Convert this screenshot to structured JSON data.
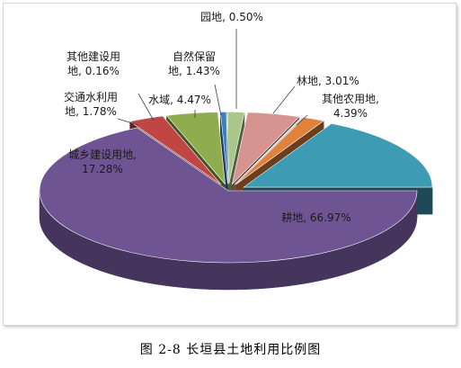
{
  "caption": "图 2-8 长垣县土地利用比例图",
  "chart_data": {
    "type": "pie",
    "title": "",
    "categories": [
      "耕地",
      "林地",
      "其他农用地",
      "园地",
      "自然保留地",
      "水域",
      "其他建设用地",
      "交通水利用地",
      "城乡建设用地"
    ],
    "values": [
      66.97,
      3.01,
      4.39,
      0.5,
      1.43,
      4.47,
      0.16,
      1.78,
      17.28
    ],
    "label_lines": [
      [
        "耕地, 66.97%"
      ],
      [
        "林地, 3.01%"
      ],
      [
        "其他农用地,",
        "4.39%"
      ],
      [
        "园地, 0.50%"
      ],
      [
        "自然保留",
        "地, 1.43%"
      ],
      [
        "水域, 4.47%"
      ],
      [
        "其他建设用",
        "地, 0.16%"
      ],
      [
        "交通水利用",
        "地, 1.78%"
      ],
      [
        "城乡建设用地,",
        "17.28%"
      ]
    ],
    "colors": [
      "#6f5494",
      "#bf4642",
      "#8fac4f",
      "#3a80c2",
      "#aac78a",
      "#d6938f",
      "#c9c9c9",
      "#e0813c",
      "#3d9bb4"
    ],
    "style": "3d-exploded",
    "legend": "none"
  }
}
